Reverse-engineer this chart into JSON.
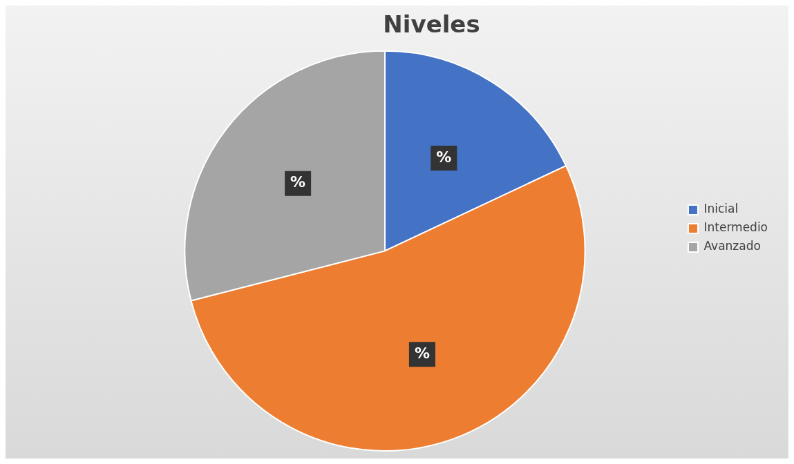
{
  "chart_data": {
    "type": "pie",
    "title": "Niveles",
    "categories": [
      "Inicial",
      "Intermedio",
      "Avanzado"
    ],
    "values": [
      18,
      53,
      29
    ],
    "colors": [
      "#4472c4",
      "#ed7d31",
      "#a5a5a5"
    ],
    "value_labels": [
      "%",
      "%",
      "%"
    ],
    "legend": "right"
  }
}
